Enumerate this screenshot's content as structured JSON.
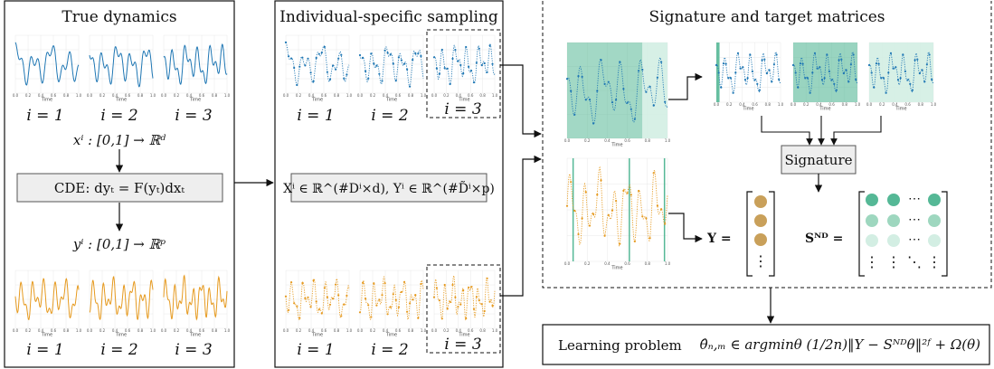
{
  "panels": {
    "true_dynamics": {
      "title": "True dynamics",
      "path_eq": "xⁱ : [0,1] → ℝᵈ",
      "cde": "CDE: dyₜ = F(yₜ)dxₜ",
      "response_eq": "yⁱ : [0,1] → ℝᵖ"
    },
    "sampling": {
      "title": "Individual-specific sampling",
      "matrices": "Xⁱ ∈ ℝ^(#Dⁱ×d), Yⁱ ∈ ℝ^(#D̃ⁱ×p)"
    },
    "signature": {
      "title": "Signature and target matrices",
      "signature_box": "Signature",
      "y_label": "Y =",
      "s_label": "Sᴺᴰ ="
    }
  },
  "index_labels": [
    "i = 1",
    "i = 2",
    "i = 3"
  ],
  "learning": {
    "label": "Learning problem",
    "formula": "θ̂ₙ,ₘ ∈ argminθ (1/2n)‖Y − Sᴺᴰθ‖²ᶠ + Ω(θ)"
  },
  "thumb_axis": {
    "xlabel": "Time",
    "xticks": [
      "0.0",
      "0.2",
      "0.4",
      "0.6",
      "0.8",
      "1.0"
    ]
  },
  "colors": {
    "blue": "#1f77b4",
    "orange": "#e69a1f",
    "teal": "#55b896",
    "teal_mid": "#9ed7bf",
    "teal_light": "#d3eee3",
    "tan": "#c9a05a",
    "box_gray": "#eeeeee"
  }
}
